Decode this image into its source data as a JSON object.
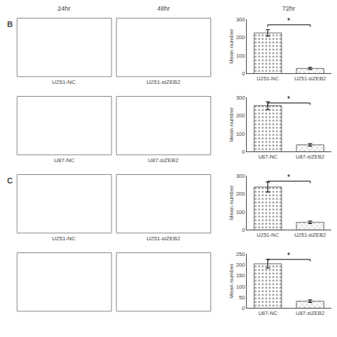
{
  "annotations": [
    "24hr",
    "48hr",
    "72hr"
  ],
  "chart_data": [
    {
      "type": "bar",
      "title": "B",
      "categories": [
        "U251-NC",
        "U251-siZEB2"
      ],
      "values": [
        225,
        28
      ],
      "errors": [
        18,
        6
      ],
      "colors": [
        "#858585",
        "#b0b0b0"
      ],
      "ylabel": "Mean number",
      "ylim": [
        0,
        300
      ],
      "yticks": [
        0,
        100,
        200,
        300
      ],
      "grid": false,
      "annotations": [
        {
          "text": "U251-NC"
        },
        {
          "text": "U251-siZEB2"
        },
        {
          "text": "*",
          "x": [
            0,
            1
          ]
        }
      ]
    },
    {
      "type": "bar",
      "categories": [
        "U87-NC",
        "U87-siZEB2"
      ],
      "values": [
        255,
        38
      ],
      "errors": [
        22,
        7
      ],
      "colors": [
        "#858585",
        "#b0b0b0"
      ],
      "ylabel": "Mean number",
      "ylim": [
        0,
        300
      ],
      "yticks": [
        0,
        100,
        200,
        300
      ],
      "grid": false,
      "annotations": [
        {
          "text": "U87-NC"
        },
        {
          "text": "U87-siZEB2"
        },
        {
          "text": "*",
          "x": [
            0,
            1
          ]
        }
      ]
    },
    {
      "type": "bar",
      "title": "C",
      "categories": [
        "U251-NC",
        "U251-siZEB2"
      ],
      "values": [
        238,
        42
      ],
      "errors": [
        28,
        7
      ],
      "colors": [
        "#858585",
        "#b0b0b0"
      ],
      "ylabel": "Mean number",
      "ylim": [
        0,
        300
      ],
      "yticks": [
        0,
        100,
        200,
        300
      ],
      "grid": false,
      "annotations": [
        {
          "text": "U251-NC"
        },
        {
          "text": "U251-siZEB2"
        },
        {
          "text": "*",
          "x": [
            0,
            1
          ]
        }
      ]
    },
    {
      "type": "bar",
      "categories": [
        "U87-NC",
        "U87-siZEB2"
      ],
      "values": [
        205,
        32
      ],
      "errors": [
        20,
        6
      ],
      "colors": [
        "#858585",
        "#b0b0b0"
      ],
      "ylabel": "Mean number",
      "ylim": [
        0,
        250
      ],
      "yticks": [
        0,
        50,
        100,
        150,
        200,
        250
      ],
      "grid": false,
      "annotations": [
        {
          "text": "*",
          "x": [
            0,
            1
          ]
        }
      ]
    }
  ]
}
